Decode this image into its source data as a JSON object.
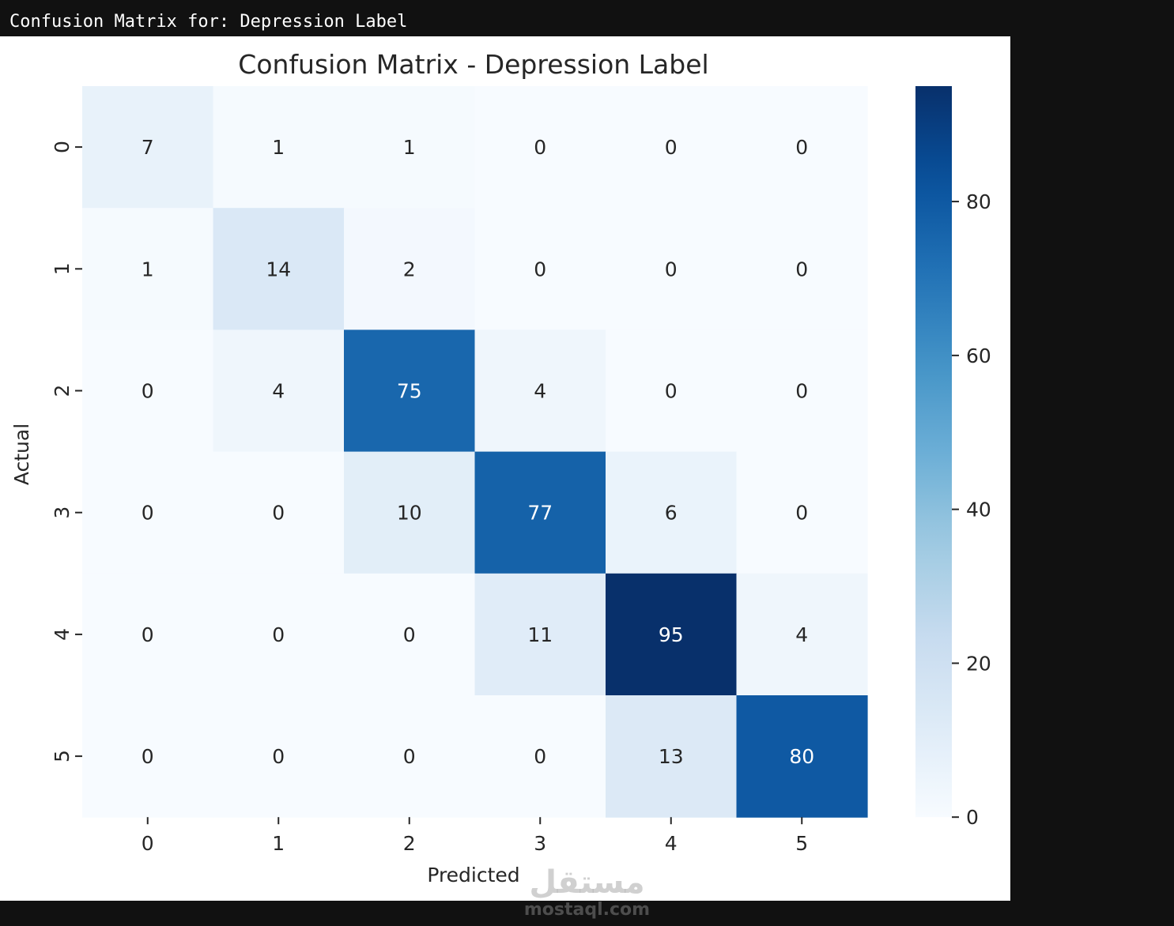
{
  "console": {
    "text": "Confusion Matrix for: Depression Label"
  },
  "watermark": {
    "arabic": "مستقل",
    "latin": "mostaql.com"
  },
  "colors": {
    "low": "#f7fbff",
    "high": "#08306b",
    "text_dark": "#262626",
    "text_light": "#ffffff"
  },
  "chart_data": {
    "type": "heatmap",
    "title": "Confusion Matrix - Depression Label",
    "xlabel": "Predicted",
    "ylabel": "Actual",
    "x_categories": [
      "0",
      "1",
      "2",
      "3",
      "4",
      "5"
    ],
    "y_categories": [
      "0",
      "1",
      "2",
      "3",
      "4",
      "5"
    ],
    "values": [
      [
        7,
        1,
        1,
        0,
        0,
        0
      ],
      [
        1,
        14,
        2,
        0,
        0,
        0
      ],
      [
        0,
        4,
        75,
        4,
        0,
        0
      ],
      [
        0,
        0,
        10,
        77,
        6,
        0
      ],
      [
        0,
        0,
        0,
        11,
        95,
        4
      ],
      [
        0,
        0,
        0,
        0,
        13,
        80
      ]
    ],
    "colormap": "Blues",
    "colorbar": {
      "range": [
        0,
        95
      ],
      "ticks": [
        0,
        20,
        40,
        60,
        80
      ]
    }
  }
}
